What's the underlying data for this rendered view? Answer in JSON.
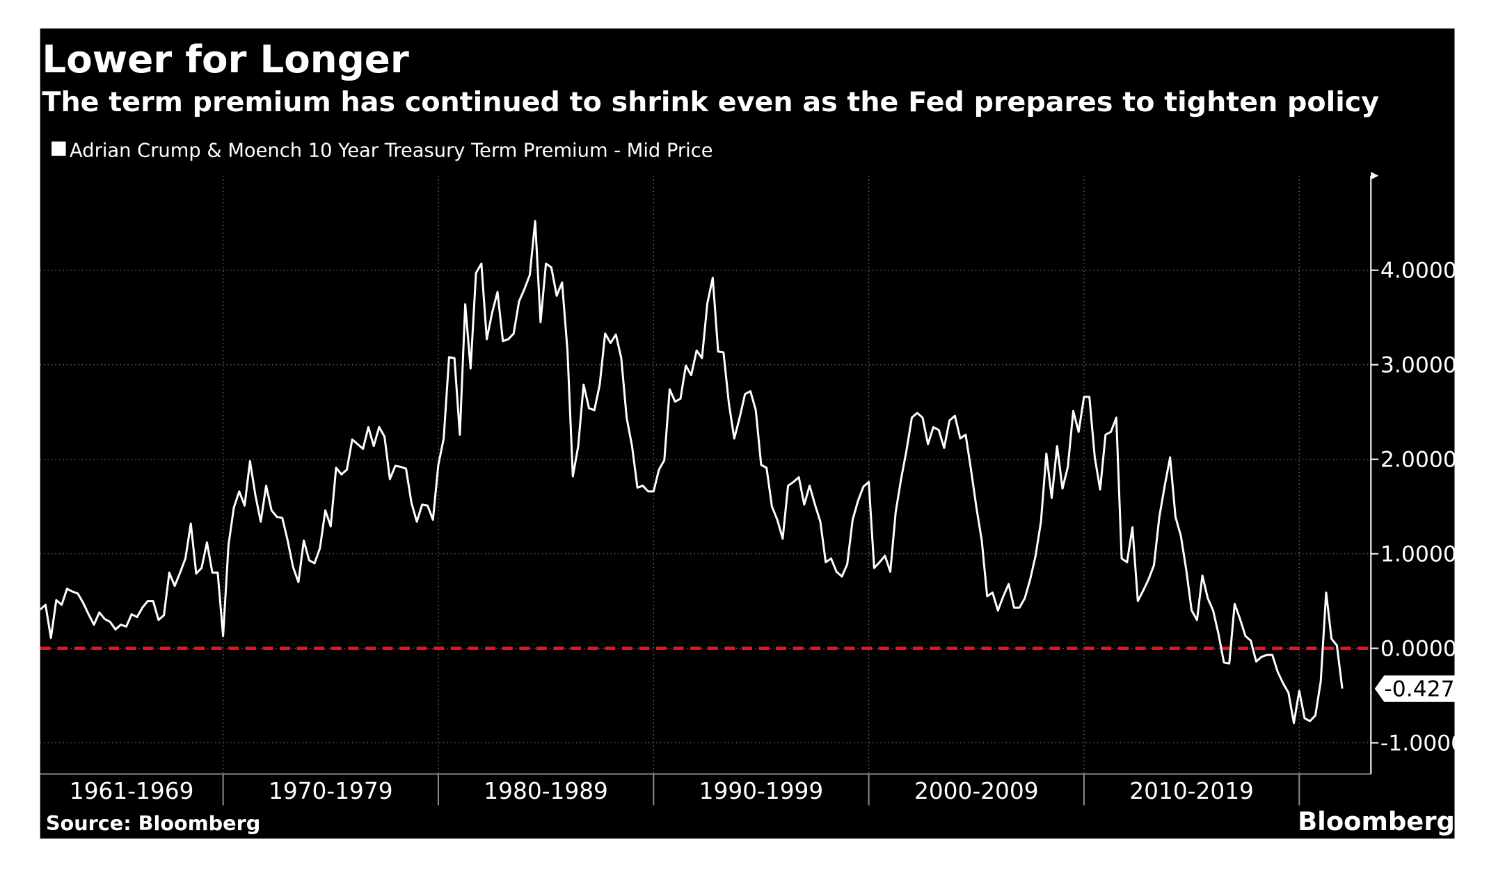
{
  "chart_data": {
    "type": "line",
    "title": "Lower for Longer",
    "subtitle": "The term premium has continued to shrink even as the Fed prepares to tighten policy",
    "source": "Source: Bloomberg",
    "logo": "Bloomberg",
    "xlim": [
      1961.5,
      2023.33
    ],
    "xticks": [
      1970,
      1980,
      1990,
      2000,
      2010,
      2020
    ],
    "xband_labels": [
      "1961-1969",
      "1970-1979",
      "1980-1989",
      "1990-1999",
      "2000-2009",
      "2010-2019"
    ],
    "ylim": [
      -1.33,
      5.0
    ],
    "yticks": [
      {
        "value": -1,
        "label": "-1.0000"
      },
      {
        "value": 0,
        "label": "0.0000"
      },
      {
        "value": 1,
        "label": "1.0000"
      },
      {
        "value": 2,
        "label": "2.0000"
      },
      {
        "value": 3,
        "label": "3.0000"
      },
      {
        "value": 4,
        "label": "4.0000"
      }
    ],
    "grid": true,
    "reference_line": {
      "value": 0,
      "color": "#e8141b"
    },
    "x": [
      1961.5,
      1961.75,
      1962,
      1962.25,
      1962.5,
      1962.75,
      1963,
      1963.25,
      1963.5,
      1963.75,
      1964,
      1964.25,
      1964.5,
      1964.75,
      1965,
      1965.25,
      1965.5,
      1965.75,
      1966,
      1966.25,
      1966.5,
      1966.75,
      1967,
      1967.25,
      1967.5,
      1967.75,
      1968,
      1968.25,
      1968.5,
      1968.75,
      1969,
      1969.25,
      1969.5,
      1969.75,
      1970,
      1970.25,
      1970.5,
      1970.75,
      1971,
      1971.25,
      1971.5,
      1971.75,
      1972,
      1972.25,
      1972.5,
      1972.75,
      1973,
      1973.25,
      1973.5,
      1973.75,
      1974,
      1974.25,
      1974.5,
      1974.75,
      1975,
      1975.25,
      1975.5,
      1975.75,
      1976,
      1976.25,
      1976.5,
      1976.75,
      1977,
      1977.25,
      1977.5,
      1977.75,
      1978,
      1978.25,
      1978.5,
      1978.75,
      1979,
      1979.25,
      1979.5,
      1979.75,
      1980,
      1980.25,
      1980.5,
      1980.75,
      1981,
      1981.25,
      1981.5,
      1981.75,
      1982,
      1982.25,
      1982.5,
      1982.75,
      1983,
      1983.25,
      1983.5,
      1983.75,
      1984,
      1984.25,
      1984.5,
      1984.75,
      1985,
      1985.25,
      1985.5,
      1985.75,
      1986,
      1986.25,
      1986.5,
      1986.75,
      1987,
      1987.25,
      1987.5,
      1987.75,
      1988,
      1988.25,
      1988.5,
      1988.75,
      1989,
      1989.25,
      1989.5,
      1989.75,
      1990,
      1990.25,
      1990.5,
      1990.75,
      1991,
      1991.25,
      1991.5,
      1991.75,
      1992,
      1992.25,
      1992.5,
      1992.75,
      1993,
      1993.25,
      1993.5,
      1993.75,
      1994,
      1994.25,
      1994.5,
      1994.75,
      1995,
      1995.25,
      1995.5,
      1995.75,
      1996,
      1996.25,
      1996.5,
      1996.75,
      1997,
      1997.25,
      1997.5,
      1997.75,
      1998,
      1998.25,
      1998.5,
      1998.75,
      1999,
      1999.25,
      1999.5,
      1999.75,
      2000,
      2000.25,
      2000.5,
      2000.75,
      2001,
      2001.25,
      2001.5,
      2001.75,
      2002,
      2002.25,
      2002.5,
      2002.75,
      2003,
      2003.25,
      2003.5,
      2003.75,
      2004,
      2004.25,
      2004.5,
      2004.75,
      2005,
      2005.25,
      2005.5,
      2005.75,
      2006,
      2006.25,
      2006.5,
      2006.75,
      2007,
      2007.25,
      2007.5,
      2007.75,
      2008,
      2008.25,
      2008.5,
      2008.75,
      2009,
      2009.25,
      2009.5,
      2009.75,
      2010,
      2010.25,
      2010.5,
      2010.75,
      2011,
      2011.25,
      2011.5,
      2011.75,
      2012,
      2012.25,
      2012.5,
      2012.75,
      2013,
      2013.25,
      2013.5,
      2013.75,
      2014,
      2014.25,
      2014.5,
      2014.75,
      2015,
      2015.25,
      2015.5,
      2015.75,
      2016,
      2016.25,
      2016.5,
      2016.75,
      2017,
      2017.25,
      2017.5,
      2017.75,
      2018,
      2018.25,
      2018.5,
      2018.75,
      2019,
      2019.25,
      2019.5,
      2019.75,
      2020,
      2020.25,
      2020.5,
      2020.75,
      2021,
      2021.25,
      2021.5,
      2021.75,
      2022
    ],
    "series": [
      {
        "name": "Adrian Crump & Moench 10 Year Treasury Term Premium - Mid Price",
        "color": "#ffffff",
        "values": [
          0.41,
          0.46,
          0.11,
          0.51,
          0.46,
          0.63,
          0.6,
          0.58,
          0.48,
          0.36,
          0.25,
          0.38,
          0.31,
          0.28,
          0.2,
          0.25,
          0.23,
          0.36,
          0.33,
          0.43,
          0.5,
          0.5,
          0.3,
          0.35,
          0.8,
          0.66,
          0.8,
          0.95,
          1.32,
          0.79,
          0.85,
          1.12,
          0.8,
          0.8,
          0.13,
          1.09,
          1.49,
          1.66,
          1.51,
          1.98,
          1.62,
          1.34,
          1.72,
          1.46,
          1.39,
          1.38,
          1.14,
          0.86,
          0.7,
          1.14,
          0.93,
          0.9,
          1.06,
          1.46,
          1.29,
          1.91,
          1.84,
          1.89,
          2.21,
          2.16,
          2.11,
          2.34,
          2.14,
          2.34,
          2.24,
          1.79,
          1.93,
          1.92,
          1.9,
          1.54,
          1.34,
          1.52,
          1.51,
          1.36,
          1.94,
          2.22,
          3.08,
          3.07,
          2.26,
          3.64,
          2.96,
          3.97,
          4.07,
          3.27,
          3.55,
          3.77,
          3.25,
          3.27,
          3.33,
          3.67,
          3.8,
          3.95,
          4.52,
          3.45,
          4.07,
          4.03,
          3.73,
          3.87,
          3.15,
          1.82,
          2.14,
          2.79,
          2.54,
          2.52,
          2.79,
          3.33,
          3.23,
          3.32,
          3.07,
          2.44,
          2.14,
          1.7,
          1.72,
          1.66,
          1.66,
          1.89,
          1.99,
          2.74,
          2.61,
          2.64,
          2.99,
          2.89,
          3.15,
          3.07,
          3.65,
          3.92,
          3.14,
          3.13,
          2.59,
          2.22,
          2.44,
          2.69,
          2.72,
          2.52,
          1.94,
          1.91,
          1.5,
          1.36,
          1.16,
          1.72,
          1.76,
          1.81,
          1.52,
          1.72,
          1.52,
          1.34,
          0.91,
          0.95,
          0.81,
          0.76,
          0.89,
          1.36,
          1.56,
          1.71,
          1.76,
          0.85,
          0.91,
          0.98,
          0.81,
          1.44,
          1.79,
          2.09,
          2.44,
          2.49,
          2.44,
          2.16,
          2.34,
          2.31,
          2.12,
          2.41,
          2.46,
          2.22,
          2.26,
          1.89,
          1.49,
          1.14,
          0.55,
          0.59,
          0.4,
          0.55,
          0.68,
          0.43,
          0.43,
          0.53,
          0.73,
          0.98,
          1.34,
          2.06,
          1.59,
          2.14,
          1.69,
          1.92,
          2.51,
          2.29,
          2.66,
          2.66,
          2.02,
          1.68,
          2.26,
          2.29,
          2.44,
          0.95,
          0.91,
          1.28,
          0.5,
          0.61,
          0.73,
          0.88,
          1.39,
          1.72,
          2.02,
          1.39,
          1.19,
          0.83,
          0.4,
          0.3,
          0.77,
          0.53,
          0.4,
          0.15,
          -0.15,
          -0.16,
          0.47,
          0.31,
          0.13,
          0.08,
          -0.14,
          -0.09,
          -0.07,
          -0.07,
          -0.25,
          -0.37,
          -0.47,
          -0.79,
          -0.45,
          -0.74,
          -0.77,
          -0.71,
          -0.35,
          0.59,
          0.1,
          0.03,
          -0.427
        ]
      }
    ]
  }
}
